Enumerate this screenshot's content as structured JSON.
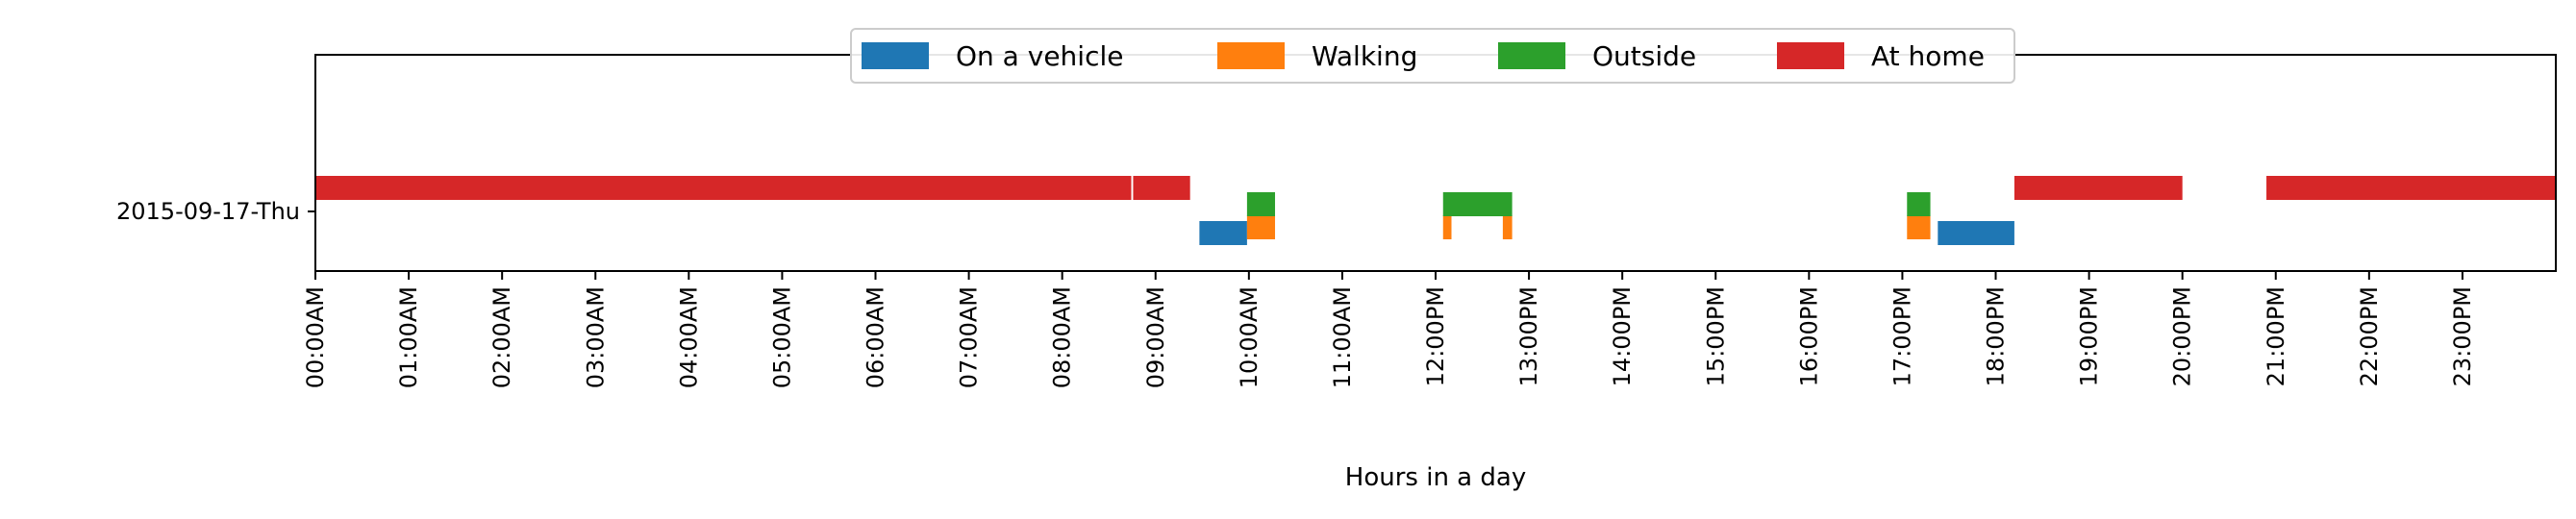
{
  "chart_data": {
    "type": "timeline",
    "xlabel": "Hours in a day",
    "xlim": [
      0,
      24
    ],
    "x_tick_labels": [
      "00:00AM",
      "01:00AM",
      "02:00AM",
      "03:00AM",
      "04:00AM",
      "05:00AM",
      "06:00AM",
      "07:00AM",
      "08:00AM",
      "09:00AM",
      "10:00AM",
      "11:00AM",
      "12:00PM",
      "13:00PM",
      "14:00PM",
      "15:00PM",
      "16:00PM",
      "17:00PM",
      "18:00PM",
      "19:00PM",
      "20:00PM",
      "21:00PM",
      "22:00PM",
      "23:00PM"
    ],
    "y_tick_labels": [
      "2015-09-17-Thu"
    ],
    "legend": {
      "placement": "top-center",
      "columns": 4
    },
    "series": [
      {
        "name": "On a vehicle",
        "color": "#1f77b4",
        "lane": 0,
        "intervals": [
          [
            9.47,
            9.98
          ],
          [
            17.38,
            18.2
          ]
        ]
      },
      {
        "name": "Walking",
        "color": "#ff7f0e",
        "lane": 1,
        "intervals": [
          [
            9.98,
            10.28
          ],
          [
            12.08,
            12.17
          ],
          [
            12.72,
            12.82
          ],
          [
            17.05,
            17.3
          ]
        ]
      },
      {
        "name": "Outside",
        "color": "#2ca02c",
        "lane": 2,
        "intervals": [
          [
            9.98,
            10.28
          ],
          [
            12.08,
            12.82
          ],
          [
            17.05,
            17.3
          ]
        ]
      },
      {
        "name": "At home",
        "color": "#d62728",
        "lane": 3,
        "intervals": [
          [
            0.0,
            8.74
          ],
          [
            8.76,
            9.37
          ],
          [
            18.2,
            20.0
          ],
          [
            20.9,
            24.0
          ]
        ]
      }
    ]
  }
}
